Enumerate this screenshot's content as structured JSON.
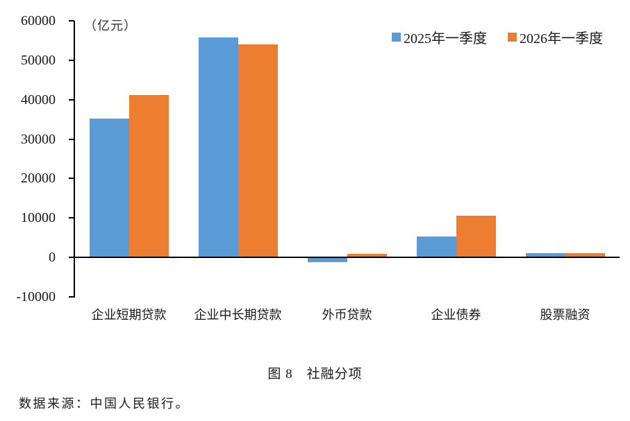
{
  "chart_data": {
    "type": "bar",
    "unit_label": "（亿元）",
    "categories": [
      "企业短期贷款",
      "企业中长期贷款",
      "外币贷款",
      "企业债券",
      "股票融资"
    ],
    "series": [
      {
        "name": "2025年一季度",
        "color": "#5B9BD5",
        "values": [
          35200,
          55800,
          -1000,
          5200,
          1000
        ]
      },
      {
        "name": "2026年一季度",
        "color": "#ED7D31",
        "values": [
          41200,
          54100,
          800,
          10500,
          1100
        ]
      }
    ],
    "ylim": [
      -10000,
      60000
    ],
    "yticks": [
      60000,
      50000,
      40000,
      30000,
      20000,
      10000,
      0,
      -10000
    ],
    "ytick_labels": [
      "60000",
      "50000",
      "40000",
      "30000",
      "20000",
      "10000",
      "0",
      "-10000"
    ],
    "grid": false,
    "legend_position": "top-right"
  },
  "caption": "图 8　社融分项",
  "source": "数据来源：中国人民银行。"
}
